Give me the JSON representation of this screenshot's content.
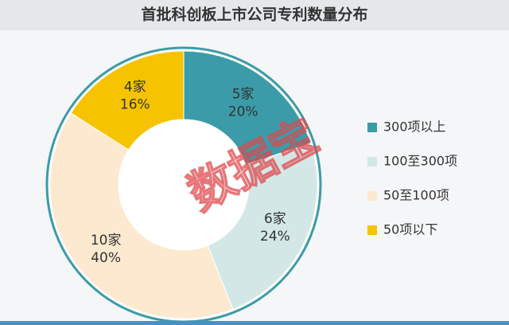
{
  "chart_data": {
    "type": "pie",
    "title": "首批科创板上市公司专利数量分布",
    "categories": [
      "300项以上",
      "100至300项",
      "50至100项",
      "50项以下"
    ],
    "values": [
      20,
      24,
      40,
      16
    ],
    "value_labels": [
      "20%",
      "24%",
      "40%",
      "16%"
    ],
    "counts": [
      5,
      6,
      10,
      4
    ],
    "count_labels": [
      "5家",
      "6家",
      "10家",
      "4家"
    ],
    "colors": [
      "#3c9ba8",
      "#d3e7e7",
      "#fce9cf",
      "#f5c300"
    ],
    "legend": "right",
    "watermark": "数据宝"
  }
}
